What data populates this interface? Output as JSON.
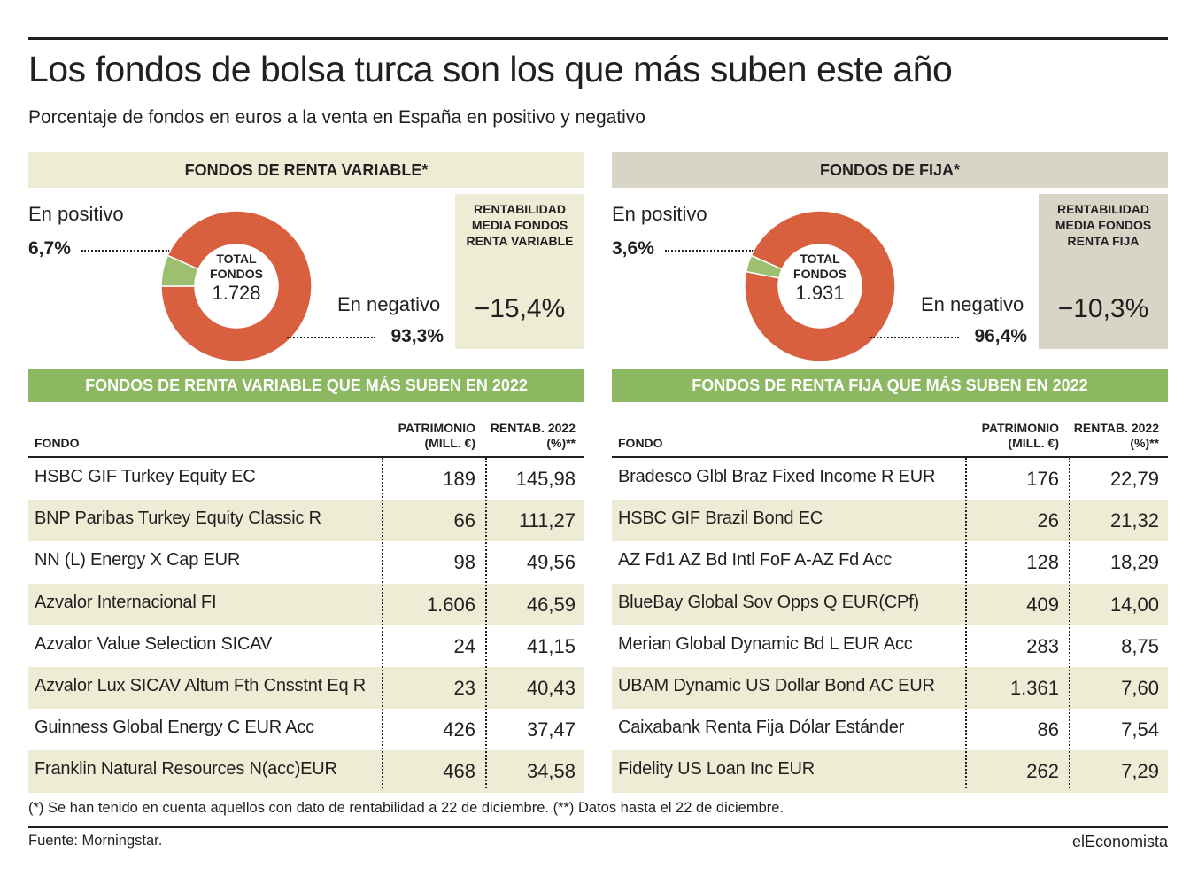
{
  "title": "Los fondos de bolsa turca son los que más suben este año",
  "subtitle": "Porcentaje de fondos en euros a la venta en España en positivo y negativo",
  "colors": {
    "negative": "#d9603e",
    "positive": "#9cc06f",
    "green_header": "#8db862",
    "beige": "#efecd6",
    "grey_beige": "#d8d5c7"
  },
  "panels": [
    {
      "section_title": "FONDOS DE RENTA VARIABLE*",
      "positive_label": "En positivo",
      "positive_value": "6,7%",
      "negative_label": "En negativo",
      "negative_value": "93,3%",
      "center_label": "TOTAL FONDOS",
      "center_value": "1.728",
      "avg_label": "RENTABILIDAD MEDIA FONDOS RENTA VARIABLE",
      "avg_value": "−15,4%",
      "table_title": "FONDOS DE RENTA VARIABLE QUE MÁS SUBEN EN 2022",
      "col_fondo": "FONDO",
      "col_patrimonio": "PATRIMONIO (MILL. €)",
      "col_rentab": "RENTAB. 2022 (%)**",
      "rows": [
        {
          "name": "HSBC GIF Turkey Equity EC",
          "patrimonio": "189",
          "rentab": "145,98"
        },
        {
          "name": "BNP Paribas Turkey Equity Classic R",
          "patrimonio": "66",
          "rentab": "111,27"
        },
        {
          "name": "NN (L) Energy X Cap EUR",
          "patrimonio": "98",
          "rentab": "49,56"
        },
        {
          "name": "Azvalor Internacional FI",
          "patrimonio": "1.606",
          "rentab": "46,59"
        },
        {
          "name": "Azvalor Value Selection SICAV",
          "patrimonio": "24",
          "rentab": "41,15"
        },
        {
          "name": "Azvalor Lux SICAV Altum Fth Cnsstnt Eq R",
          "patrimonio": "23",
          "rentab": "40,43"
        },
        {
          "name": "Guinness Global Energy C EUR Acc",
          "patrimonio": "426",
          "rentab": "37,47"
        },
        {
          "name": "Franklin Natural Resources N(acc)EUR",
          "patrimonio": "468",
          "rentab": "34,58"
        }
      ]
    },
    {
      "section_title": "FONDOS DE FIJA*",
      "positive_label": "En positivo",
      "positive_value": "3,6%",
      "negative_label": "En negativo",
      "negative_value": "96,4%",
      "center_label": "TOTAL FONDOS",
      "center_value": "1.931",
      "avg_label": "RENTABILIDAD MEDIA FONDOS RENTA FIJA",
      "avg_value": "−10,3%",
      "table_title": "FONDOS DE RENTA FIJA QUE MÁS SUBEN EN 2022",
      "col_fondo": "FONDO",
      "col_patrimonio": "PATRIMONIO (MILL. €)",
      "col_rentab": "RENTAB. 2022 (%)**",
      "rows": [
        {
          "name": "Bradesco Glbl Braz Fixed Income R EUR",
          "patrimonio": "176",
          "rentab": "22,79"
        },
        {
          "name": "HSBC GIF Brazil Bond EC",
          "patrimonio": "26",
          "rentab": "21,32"
        },
        {
          "name": "AZ Fd1 AZ Bd Intl FoF A-AZ Fd Acc",
          "patrimonio": "128",
          "rentab": "18,29"
        },
        {
          "name": "BlueBay Global Sov Opps Q EUR(CPf)",
          "patrimonio": "409",
          "rentab": "14,00"
        },
        {
          "name": "Merian Global Dynamic Bd L EUR Acc",
          "patrimonio": "283",
          "rentab": "8,75"
        },
        {
          "name": "UBAM Dynamic US Dollar Bond AC EUR",
          "patrimonio": "1.361",
          "rentab": "7,60"
        },
        {
          "name": "Caixabank Renta Fija Dólar Estánder",
          "patrimonio": "86",
          "rentab": "7,54"
        },
        {
          "name": "Fidelity US Loan Inc EUR",
          "patrimonio": "262",
          "rentab": "7,29"
        }
      ]
    }
  ],
  "chart_data": [
    {
      "type": "pie",
      "title": "FONDOS DE RENTA VARIABLE*",
      "categories": [
        "En positivo",
        "En negativo"
      ],
      "values": [
        6.7,
        93.3
      ],
      "total": 1728
    },
    {
      "type": "pie",
      "title": "FONDOS DE FIJA*",
      "categories": [
        "En positivo",
        "En negativo"
      ],
      "values": [
        3.6,
        96.4
      ],
      "total": 1931
    }
  ],
  "footnote": "(*) Se han tenido en cuenta aquellos con dato de rentabilidad a 22 de diciembre. (**) Datos hasta el 22 de diciembre.",
  "source": "Fuente: Morningstar.",
  "brand": "elEconomista"
}
